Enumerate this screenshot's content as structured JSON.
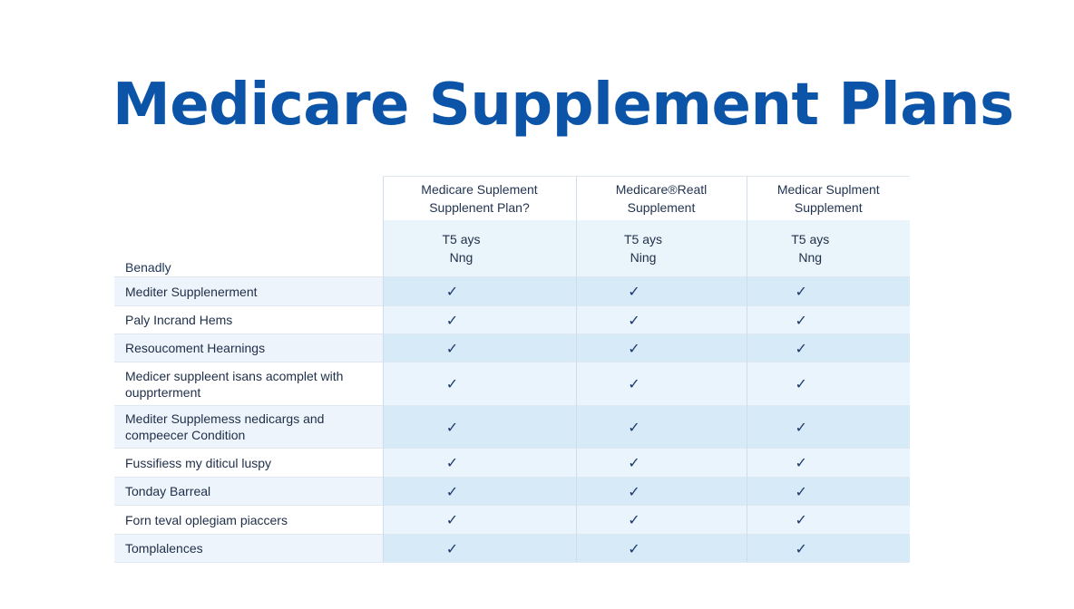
{
  "title": "Medicare Supplement Plans",
  "table": {
    "benefit_label": "Benadly",
    "columns": [
      {
        "line1": "Medicare Suplement",
        "line2": "Supplenent Plan?",
        "sub1": "T5 ays",
        "sub2": "Nng"
      },
      {
        "line1": "Medicare®Reatl",
        "line2": "Supplement",
        "sub1": "T5 ays",
        "sub2": "Ning"
      },
      {
        "line1": "Medicar Suplment",
        "line2": "Supplement",
        "sub1": "T5 ays",
        "sub2": "Nng"
      }
    ],
    "check_glyph": "✓",
    "rows": [
      {
        "line1": "Mediter Supplenerment",
        "line2": "",
        "checks": [
          true,
          true,
          true
        ]
      },
      {
        "line1": "Paly Incrand Hems",
        "line2": "",
        "checks": [
          true,
          true,
          true
        ]
      },
      {
        "line1": "Resoucoment Hearnings",
        "line2": "",
        "checks": [
          true,
          true,
          true
        ]
      },
      {
        "line1": "Medicer suppleent isans acomplet with",
        "line2": "oupprterment",
        "checks": [
          true,
          true,
          true
        ]
      },
      {
        "line1": "Mediter Supplemess nedicargs and",
        "line2": "compeecer Condition",
        "checks": [
          true,
          true,
          true
        ]
      },
      {
        "line1": "Fussifiess my diticul luspy",
        "line2": "",
        "checks": [
          true,
          true,
          true
        ]
      },
      {
        "line1": "Tonday Barreal",
        "line2": "",
        "checks": [
          true,
          true,
          true
        ]
      },
      {
        "line1": "Forn teval oplegiam piaccers",
        "line2": "",
        "checks": [
          true,
          true,
          true
        ]
      },
      {
        "line1": "Tomplalences",
        "line2": "",
        "checks": [
          true,
          true,
          true
        ]
      }
    ]
  }
}
